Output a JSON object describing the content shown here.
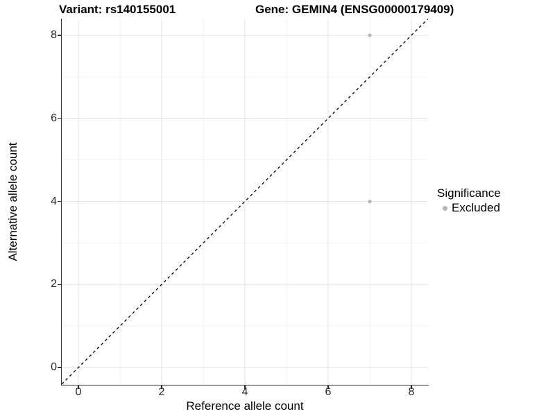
{
  "chart_data": {
    "type": "scatter",
    "title_left": "Variant: rs140155001",
    "title_right": "Gene: GEMIN4 (ENSG00000179409)",
    "xlabel": "Reference allele count",
    "ylabel": "Alternative allele count",
    "xlim": [
      -0.4,
      8.4
    ],
    "ylim": [
      -0.4,
      8.4
    ],
    "x_ticks": [
      0,
      2,
      4,
      6,
      8
    ],
    "y_ticks": [
      0,
      2,
      4,
      6,
      8
    ],
    "x_minor_ticks": [
      1,
      3,
      5,
      7
    ],
    "y_minor_ticks": [
      1,
      3,
      5,
      7
    ],
    "grid": true,
    "legend_position": "right",
    "series": [
      {
        "name": "Excluded",
        "color": "#b5b5b5",
        "points": [
          [
            7,
            8
          ],
          [
            7,
            4
          ]
        ]
      }
    ],
    "reference_line": {
      "type": "identity-diagonal",
      "style": "dashed",
      "color": "#000000"
    },
    "legend": {
      "title": "Significance",
      "items": [
        {
          "label": "Excluded",
          "color": "#b5b5b5"
        }
      ]
    }
  },
  "colors": {
    "background": "#ffffff",
    "axis_line": "#333333",
    "tick_label": "#262626",
    "grid_major": "#e5e5e5",
    "grid_minor": "#f2f2f2",
    "point": "#b5b5b5",
    "diagonal": "#000000"
  }
}
